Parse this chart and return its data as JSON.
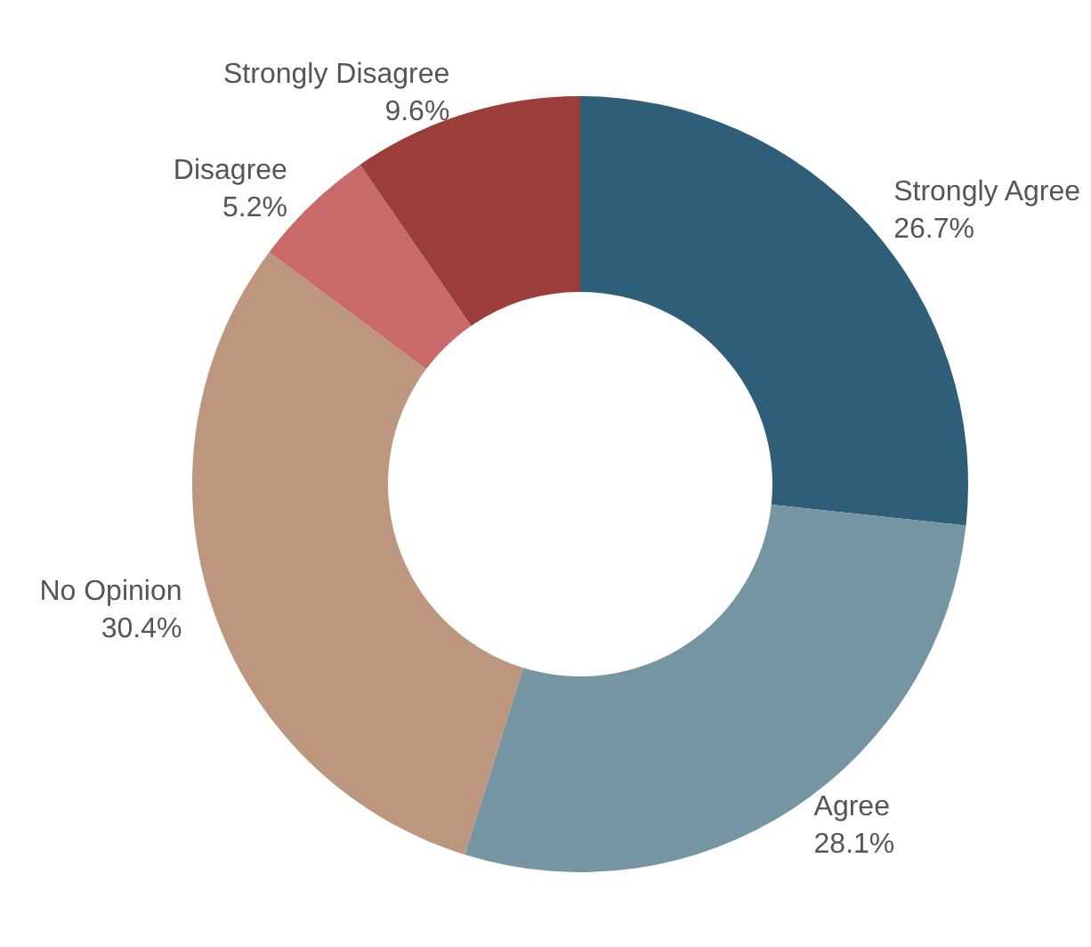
{
  "chart_data": {
    "type": "donut",
    "categories": [
      "Strongly Agree",
      "Agree",
      "No Opinion",
      "Disagree",
      "Strongly Disagree"
    ],
    "values": [
      26.7,
      28.1,
      30.4,
      5.2,
      9.6
    ],
    "value_labels": [
      "26.7%",
      "28.1%",
      "30.4%",
      "5.2%",
      "9.6%"
    ],
    "colors": [
      "#2e5e78",
      "#7595a3",
      "#bc967e",
      "#c86a6a",
      "#9b3d3b"
    ],
    "legend": false
  }
}
